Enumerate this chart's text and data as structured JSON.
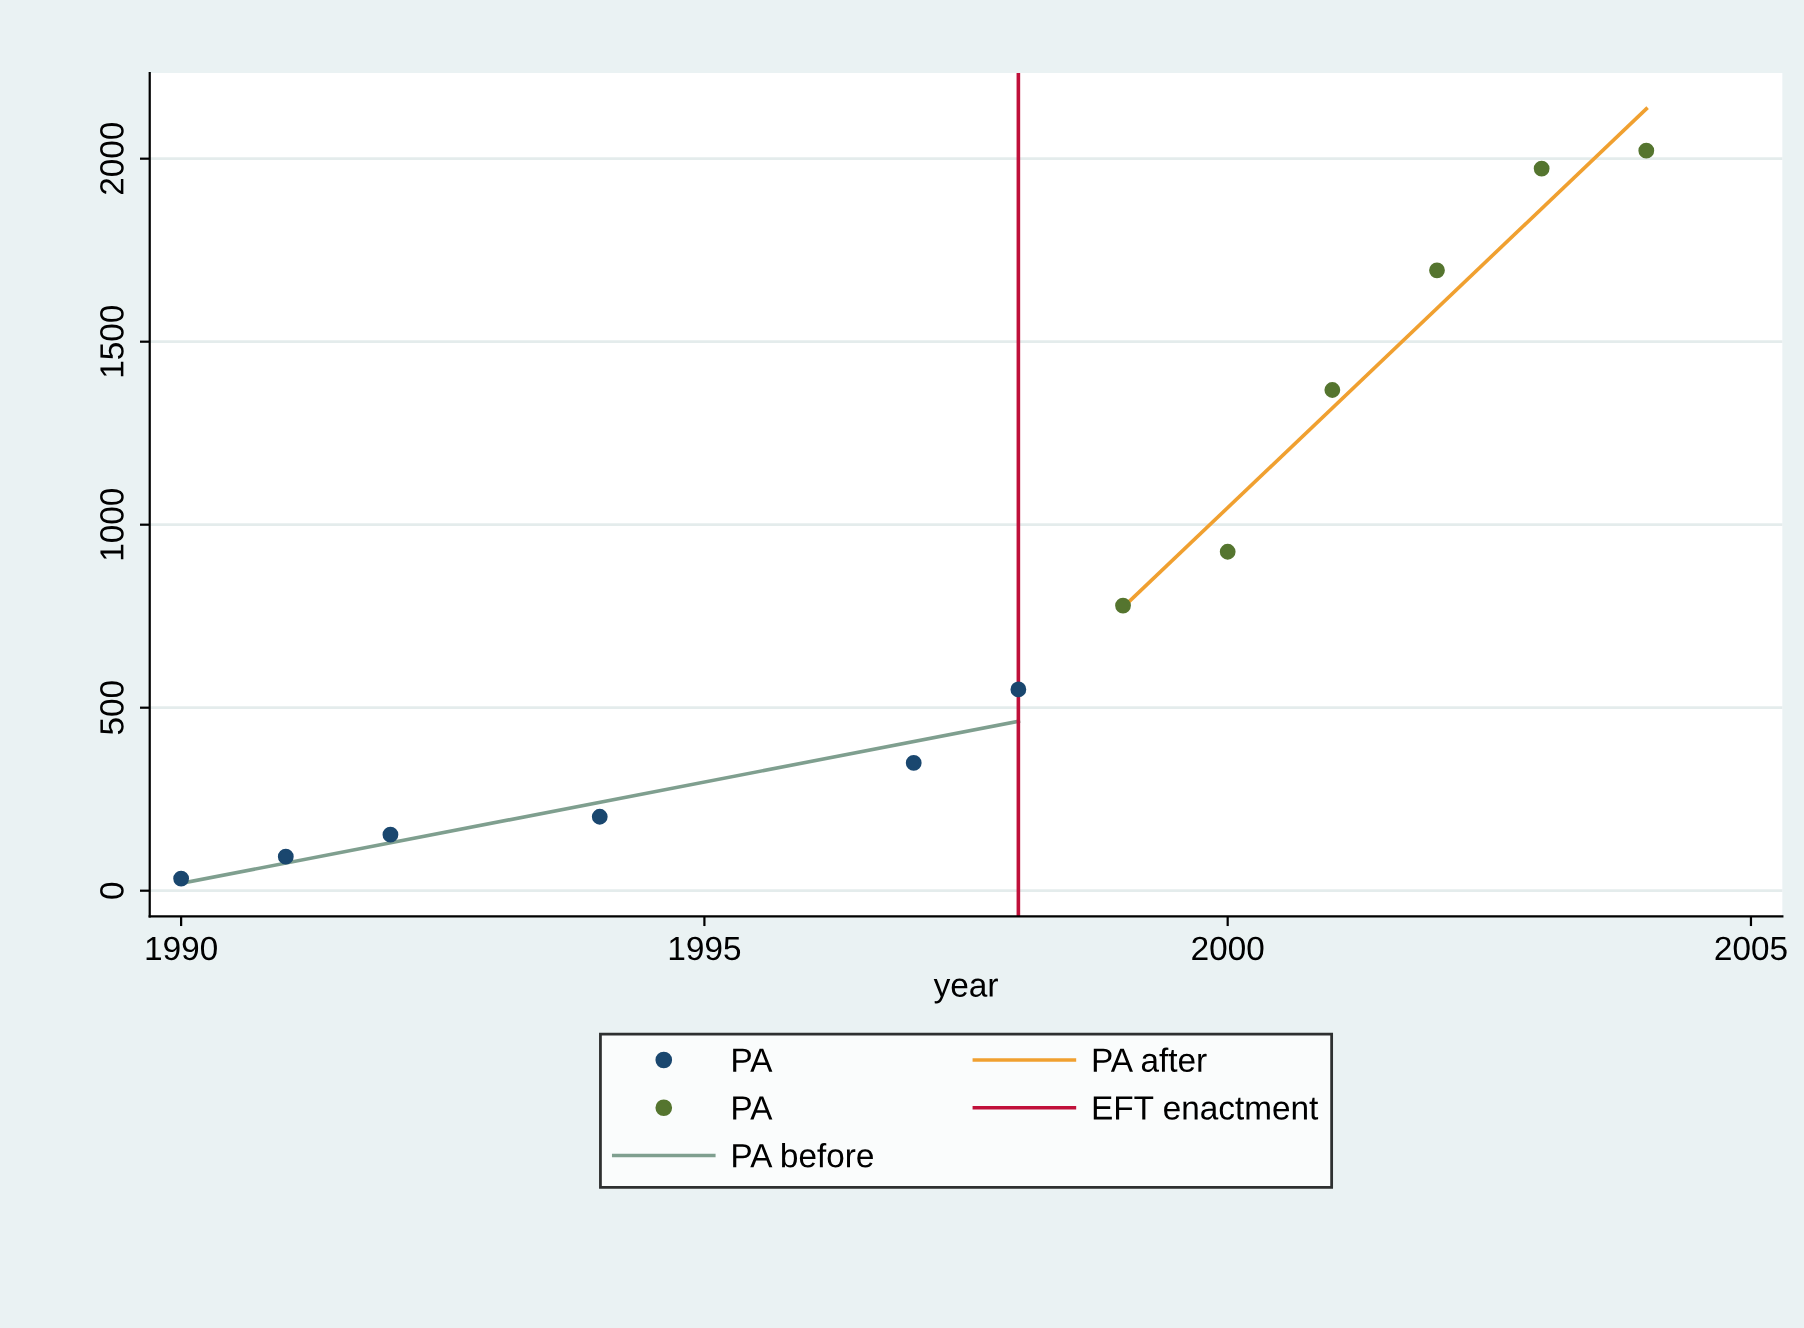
{
  "chart_data": {
    "type": "scatter",
    "xlabel": "year",
    "xlim": [
      1989.7,
      2005.3
    ],
    "xticks": [
      1990,
      1995,
      2000,
      2005
    ],
    "ylim": [
      -70,
      2234
    ],
    "yticks": [
      0,
      500,
      1000,
      1500,
      2000
    ],
    "grid": "y",
    "legend": "bottom",
    "series": [
      {
        "name": "PA",
        "marker": "circle",
        "color": "#1a476f",
        "x": [
          1990,
          1991,
          1992,
          1994,
          1997,
          1998
        ],
        "values": [
          33,
          93,
          153,
          202,
          349,
          550
        ]
      },
      {
        "name": "PA",
        "marker": "circle",
        "color": "#55752f",
        "x": [
          1999,
          2000,
          2001,
          2002,
          2003,
          2004
        ],
        "values": [
          779,
          926,
          1368,
          1695,
          1973,
          2022
        ]
      },
      {
        "name": "PA before",
        "type": "line",
        "color": "#7f9f8f",
        "x": [
          1990,
          1998
        ],
        "values": [
          20,
          463
        ]
      },
      {
        "name": "PA after",
        "type": "line",
        "color": "#f0a030",
        "x": [
          1999,
          2004
        ],
        "values": [
          774,
          2136
        ]
      }
    ],
    "ref_lines": [
      {
        "axis": "x",
        "value": 1998,
        "label": "EFT enactment",
        "color": "#c0103a"
      }
    ]
  }
}
